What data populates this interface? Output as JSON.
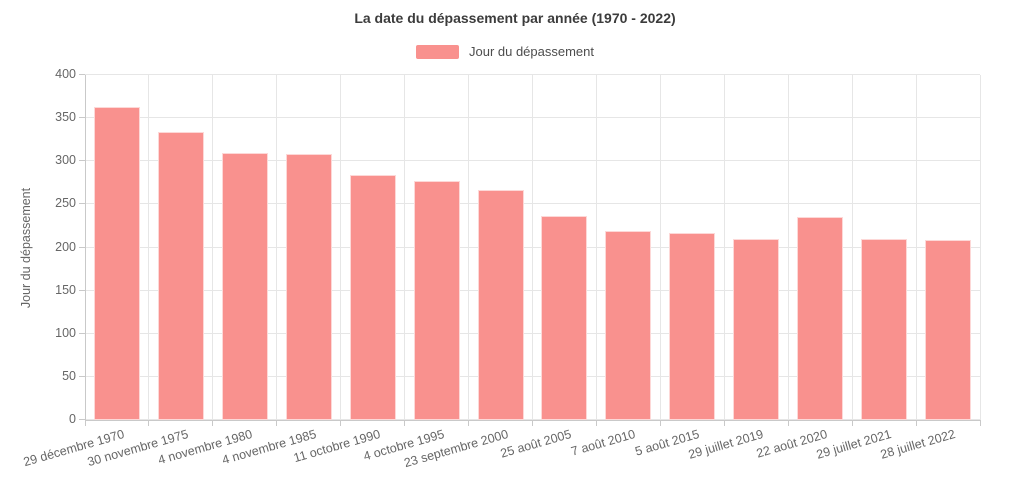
{
  "chart_data": {
    "type": "bar",
    "title": "La date du dépassement par année (1970 - 2022)",
    "categories": [
      "29 décembre 1970",
      "30 novembre 1975",
      "4 novembre 1980",
      "4 novembre 1985",
      "11 octobre 1990",
      "4 octobre 1995",
      "23 septembre 2000",
      "25 août 2005",
      "7 août 2010",
      "5 août 2015",
      "29 juillet 2019",
      "22 août 2020",
      "29 juillet 2021",
      "28 juillet 2022"
    ],
    "series": [
      {
        "name": "Jour du dépassement",
        "values": [
          363,
          334,
          309,
          308,
          284,
          277,
          267,
          237,
          219,
          217,
          210,
          235,
          210,
          209
        ]
      }
    ],
    "xlabel": "",
    "ylabel": "Jour du dépassement",
    "ylim": [
      0,
      400
    ],
    "ytick_step": 50,
    "ytick_labels": [
      "0",
      "50",
      "100",
      "150",
      "200",
      "250",
      "300",
      "350",
      "400"
    ],
    "grid": true,
    "legend_position": "top",
    "colors": {
      "bar_fill": "#f9918e",
      "gridline": "#e6e6e6",
      "axis_line": "#c9c9c9",
      "tick_text": "#666666",
      "title_text": "#3c3c3c"
    }
  }
}
